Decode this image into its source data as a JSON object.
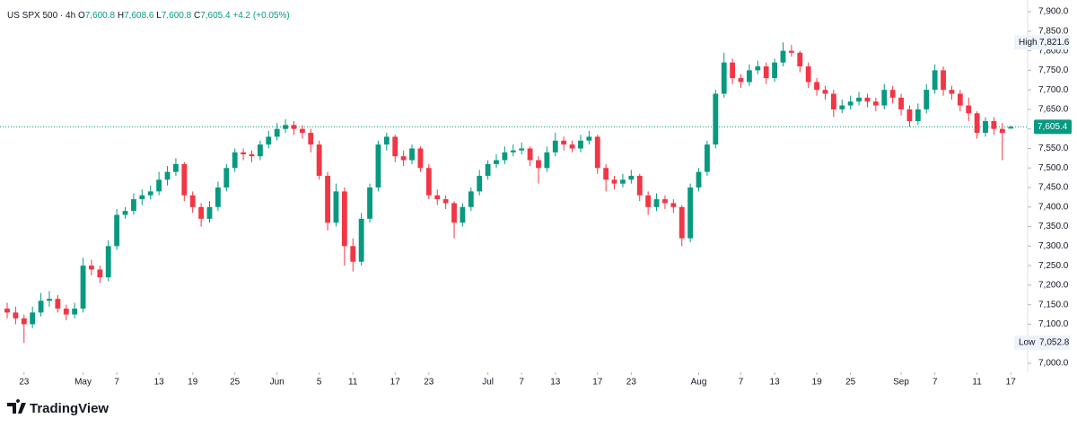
{
  "chart_data": {
    "type": "candlestick",
    "symbol": "US SPX 500 · 4h",
    "ohlc_header": [
      {
        "key": "O",
        "value": "7,600.8"
      },
      {
        "key": "H",
        "value": "7,608.6"
      },
      {
        "key": "L",
        "value": "7,600.8"
      },
      {
        "key": "C",
        "value": "7,605.4"
      }
    ],
    "change": "+4.2 (+0.05%)",
    "brand": "TradingView",
    "up_color": "#089981",
    "down_color": "#f23645",
    "open": [
      7140,
      7130,
      7115,
      7100,
      7130,
      7160,
      7165,
      7140,
      7125,
      7140,
      7250,
      7240,
      7220,
      7300,
      7380,
      7390,
      7420,
      7430,
      7440,
      7470,
      7490,
      7510,
      7430,
      7400,
      7370,
      7400,
      7450,
      7500,
      7540,
      7535,
      7530,
      7560,
      7580,
      7600,
      7610,
      7600,
      7590,
      7560,
      7480,
      7360,
      7440,
      7300,
      7260,
      7370,
      7450,
      7560,
      7580,
      7530,
      7520,
      7550,
      7500,
      7430,
      7420,
      7410,
      7360,
      7400,
      7440,
      7480,
      7510,
      7520,
      7540,
      7545,
      7550,
      7520,
      7500,
      7540,
      7570,
      7560,
      7550,
      7570,
      7580,
      7500,
      7470,
      7460,
      7470,
      7480,
      7430,
      7400,
      7420,
      7410,
      7400,
      7320,
      7450,
      7490,
      7560,
      7690,
      7770,
      7730,
      7720,
      7750,
      7760,
      7730,
      7770,
      7800,
      7795,
      7760,
      7720,
      7700,
      7690,
      7650,
      7660,
      7670,
      7680,
      7670,
      7660,
      7700,
      7680,
      7650,
      7620,
      7650,
      7700,
      7750,
      7700,
      7690,
      7660,
      7640,
      7590,
      7620,
      7600,
      7600.8
    ],
    "high": [
      7155,
      7145,
      7125,
      7145,
      7180,
      7185,
      7175,
      7150,
      7155,
      7270,
      7265,
      7250,
      7315,
      7395,
      7400,
      7435,
      7445,
      7455,
      7490,
      7505,
      7525,
      7515,
      7440,
      7410,
      7415,
      7465,
      7510,
      7550,
      7550,
      7545,
      7570,
      7595,
      7615,
      7625,
      7620,
      7610,
      7600,
      7570,
      7490,
      7460,
      7450,
      7320,
      7385,
      7460,
      7570,
      7590,
      7585,
      7545,
      7560,
      7555,
      7510,
      7445,
      7430,
      7415,
      7410,
      7450,
      7495,
      7520,
      7535,
      7555,
      7560,
      7565,
      7555,
      7530,
      7555,
      7590,
      7580,
      7570,
      7585,
      7595,
      7585,
      7510,
      7480,
      7485,
      7495,
      7485,
      7440,
      7435,
      7430,
      7420,
      7405,
      7460,
      7500,
      7570,
      7700,
      7795,
      7780,
      7740,
      7765,
      7775,
      7770,
      7780,
      7821.6,
      7815,
      7800,
      7770,
      7730,
      7710,
      7700,
      7675,
      7685,
      7695,
      7690,
      7680,
      7715,
      7710,
      7690,
      7660,
      7665,
      7715,
      7765,
      7760,
      7710,
      7700,
      7680,
      7645,
      7630,
      7630,
      7615,
      7608.6
    ],
    "low": [
      7115,
      7100,
      7052.8,
      7090,
      7120,
      7145,
      7130,
      7110,
      7115,
      7130,
      7225,
      7205,
      7210,
      7290,
      7370,
      7380,
      7405,
      7420,
      7430,
      7455,
      7480,
      7415,
      7385,
      7350,
      7360,
      7390,
      7440,
      7490,
      7520,
      7515,
      7520,
      7550,
      7570,
      7590,
      7585,
      7575,
      7540,
      7470,
      7340,
      7350,
      7250,
      7235,
      7250,
      7360,
      7440,
      7545,
      7515,
      7505,
      7510,
      7490,
      7420,
      7405,
      7395,
      7320,
      7350,
      7390,
      7430,
      7470,
      7500,
      7510,
      7530,
      7535,
      7505,
      7460,
      7490,
      7530,
      7545,
      7540,
      7540,
      7560,
      7485,
      7440,
      7445,
      7450,
      7460,
      7415,
      7380,
      7390,
      7395,
      7385,
      7300,
      7310,
      7440,
      7480,
      7550,
      7680,
      7715,
      7705,
      7710,
      7740,
      7715,
      7720,
      7760,
      7785,
      7745,
      7705,
      7685,
      7675,
      7630,
      7640,
      7650,
      7660,
      7655,
      7645,
      7650,
      7665,
      7635,
      7605,
      7610,
      7640,
      7690,
      7685,
      7675,
      7645,
      7620,
      7575,
      7580,
      7585,
      7520,
      7600.8
    ],
    "close": [
      7130,
      7115,
      7100,
      7130,
      7160,
      7165,
      7140,
      7125,
      7140,
      7250,
      7240,
      7220,
      7300,
      7380,
      7390,
      7420,
      7430,
      7440,
      7470,
      7490,
      7510,
      7430,
      7400,
      7370,
      7400,
      7450,
      7500,
      7540,
      7535,
      7530,
      7560,
      7580,
      7600,
      7610,
      7600,
      7590,
      7560,
      7480,
      7360,
      7440,
      7300,
      7260,
      7370,
      7450,
      7560,
      7580,
      7530,
      7520,
      7550,
      7500,
      7430,
      7420,
      7410,
      7360,
      7400,
      7440,
      7480,
      7510,
      7520,
      7540,
      7545,
      7550,
      7520,
      7500,
      7540,
      7570,
      7560,
      7550,
      7570,
      7580,
      7500,
      7470,
      7460,
      7470,
      7480,
      7430,
      7400,
      7420,
      7410,
      7400,
      7320,
      7450,
      7490,
      7560,
      7690,
      7770,
      7730,
      7720,
      7750,
      7760,
      7730,
      7770,
      7800,
      7795,
      7760,
      7720,
      7700,
      7690,
      7650,
      7660,
      7670,
      7680,
      7670,
      7660,
      7700,
      7680,
      7650,
      7620,
      7650,
      7700,
      7750,
      7700,
      7690,
      7660,
      7640,
      7590,
      7620,
      7600,
      7590,
      7605.4
    ],
    "xlim": [
      -0.85,
      121
    ],
    "xticks": [
      {
        "value": 2,
        "label": "23"
      },
      {
        "value": 9,
        "label": "May"
      },
      {
        "value": 13,
        "label": "7"
      },
      {
        "value": 18,
        "label": "13"
      },
      {
        "value": 22,
        "label": "19"
      },
      {
        "value": 27,
        "label": "25"
      },
      {
        "value": 32,
        "label": "Jun"
      },
      {
        "value": 37,
        "label": "5"
      },
      {
        "value": 41,
        "label": "11"
      },
      {
        "value": 46,
        "label": "17"
      },
      {
        "value": 50,
        "label": "23"
      },
      {
        "value": 57,
        "label": "Jul"
      },
      {
        "value": 61,
        "label": "7"
      },
      {
        "value": 65,
        "label": "13"
      },
      {
        "value": 70,
        "label": "17"
      },
      {
        "value": 74,
        "label": "23"
      },
      {
        "value": 82,
        "label": "Aug"
      },
      {
        "value": 87,
        "label": "7"
      },
      {
        "value": 91,
        "label": "13"
      },
      {
        "value": 96,
        "label": "19"
      },
      {
        "value": 100,
        "label": "25"
      },
      {
        "value": 106,
        "label": "Sep"
      },
      {
        "value": 110,
        "label": "7"
      },
      {
        "value": 115,
        "label": "11"
      },
      {
        "value": 119,
        "label": "17"
      }
    ],
    "ylim": [
      6977,
      7930
    ],
    "yticks": [
      {
        "value": 7000,
        "label": "7,000.0"
      },
      {
        "value": 7050,
        "label": "7,050.0"
      },
      {
        "value": 7100,
        "label": "7,100.0"
      },
      {
        "value": 7150,
        "label": "7,150.0"
      },
      {
        "value": 7200,
        "label": "7,200.0"
      },
      {
        "value": 7250,
        "label": "7,250.0"
      },
      {
        "value": 7300,
        "label": "7,300.0"
      },
      {
        "value": 7350,
        "label": "7,350.0"
      },
      {
        "value": 7400,
        "label": "7,400.0"
      },
      {
        "value": 7450,
        "label": "7,450.0"
      },
      {
        "value": 7500,
        "label": "7,500.0"
      },
      {
        "value": 7550,
        "label": "7,550.0"
      },
      {
        "value": 7600,
        "label": "7,600.0"
      },
      {
        "value": 7650,
        "label": "7,650.0"
      },
      {
        "value": 7700,
        "label": "7,700.0"
      },
      {
        "value": 7750,
        "label": "7,750.0"
      },
      {
        "value": 7800,
        "label": "7,800.0"
      },
      {
        "value": 7850,
        "label": "7,850.0"
      },
      {
        "value": 7900,
        "label": "7,900.0"
      }
    ],
    "high_marker": {
      "text": "High",
      "value": 7821.6,
      "label": "7,821.6"
    },
    "low_marker": {
      "text": "Low",
      "value": 7052.8,
      "label": "7,052.8"
    },
    "last_price": {
      "value": 7605.4,
      "label": "7,605.4"
    }
  }
}
